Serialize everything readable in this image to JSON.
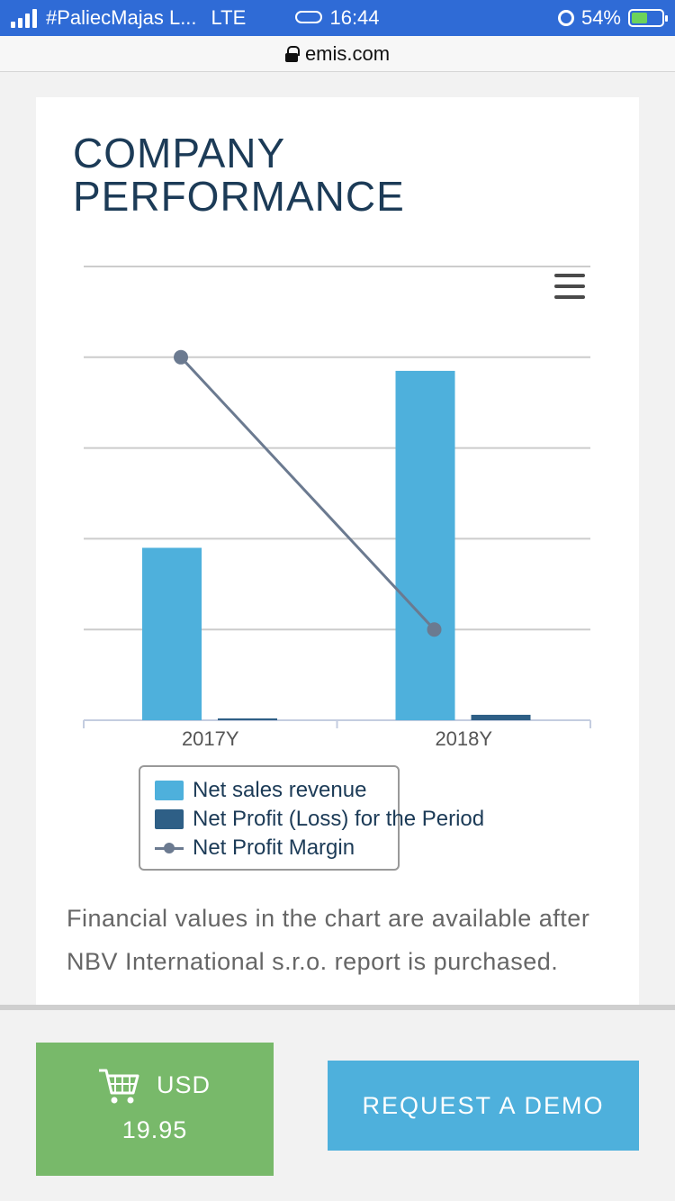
{
  "status_bar": {
    "carrier": "#PaliecMajas L...",
    "network": "LTE",
    "time": "16:44",
    "battery": "54%",
    "battery_level": 0.54
  },
  "url_bar": {
    "domain": "emis.com"
  },
  "card": {
    "title": "COMPANY\nPERFORMANCE",
    "note": "Financial values in the chart are available after NBV International s.r.o. report is purchased."
  },
  "chart_data": {
    "type": "bar",
    "categories": [
      "2017Y",
      "2018Y"
    ],
    "series": [
      {
        "name": "Net sales revenue",
        "kind": "bar",
        "color": "#4eb0dc",
        "values": [
          1.9,
          3.85
        ]
      },
      {
        "name": "Net Profit (Loss) for the Period",
        "kind": "bar",
        "color": "#2e5f86",
        "values": [
          0.02,
          0.06
        ]
      },
      {
        "name": "Net Profit Margin",
        "kind": "line",
        "color": "#6b7a90",
        "values": [
          4.0,
          1.0
        ]
      }
    ],
    "ylim": [
      0,
      5
    ],
    "grid": true,
    "legend_position": "bottom-left"
  },
  "bottom_bar": {
    "buy_currency": "USD",
    "buy_price": "19.95",
    "demo_label": "REQUEST A DEMO"
  }
}
